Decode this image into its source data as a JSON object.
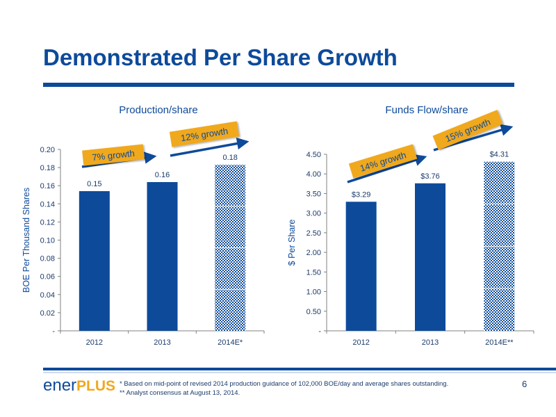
{
  "page": {
    "title": "Demonstrated Per Share Growth",
    "page_number": "6",
    "logo": {
      "part1": "ener",
      "part2": "PLUS"
    },
    "footnotes": [
      "* Based on mid-point of revised 2014 production guidance of 102,000 BOE/day and average shares outstanding.",
      "** Analyst consensus at  August 13, 2014."
    ]
  },
  "colors": {
    "brand_blue": "#0d4a9a",
    "growth_label_fill": "#f0a81e",
    "estimate_bar_pattern": "#0d4a9a"
  },
  "chart_data": [
    {
      "type": "bar",
      "title": "Production/share",
      "ylabel": "BOE Per Thousand Shares",
      "xlabel": "",
      "categories": [
        "2012",
        "2013",
        "2014E*"
      ],
      "values": [
        0.154,
        0.164,
        0.183
      ],
      "data_labels": [
        "0.15",
        "0.16",
        "0.18"
      ],
      "estimate_flags": [
        false,
        false,
        true
      ],
      "ylim": [
        0,
        0.2
      ],
      "yticks": [
        0,
        0.02,
        0.04,
        0.06,
        0.08,
        0.1,
        0.12,
        0.14,
        0.16,
        0.18,
        0.2
      ],
      "ytick_labels": [
        "-",
        "0.02",
        "0.04",
        "0.06",
        "0.08",
        "0.10",
        "0.12",
        "0.14",
        "0.16",
        "0.18",
        "0.20"
      ],
      "grid": false,
      "annotations": [
        {
          "text": "7% growth",
          "from": "2012",
          "to": "2013"
        },
        {
          "text": "12% growth",
          "from": "2013",
          "to": "2014E*"
        }
      ]
    },
    {
      "type": "bar",
      "title": "Funds Flow/share",
      "ylabel": "$ Per Share",
      "xlabel": "",
      "categories": [
        "2012",
        "2013",
        "2014E**"
      ],
      "values": [
        3.29,
        3.76,
        4.31
      ],
      "data_labels": [
        "$3.29",
        "$3.76",
        "$4.31"
      ],
      "estimate_flags": [
        false,
        false,
        true
      ],
      "ylim": [
        0,
        4.5
      ],
      "yticks": [
        0,
        0.5,
        1,
        1.5,
        2,
        2.5,
        3,
        3.5,
        4,
        4.5
      ],
      "ytick_labels": [
        "-",
        "0.50",
        "1.00",
        "1.50",
        "2.00",
        "2.50",
        "3.00",
        "3.50",
        "4.00",
        "4.50"
      ],
      "grid": false,
      "annotations": [
        {
          "text": "14% growth",
          "from": "2012",
          "to": "2013"
        },
        {
          "text": "15% growth",
          "from": "2013",
          "to": "2014E**"
        }
      ]
    }
  ]
}
